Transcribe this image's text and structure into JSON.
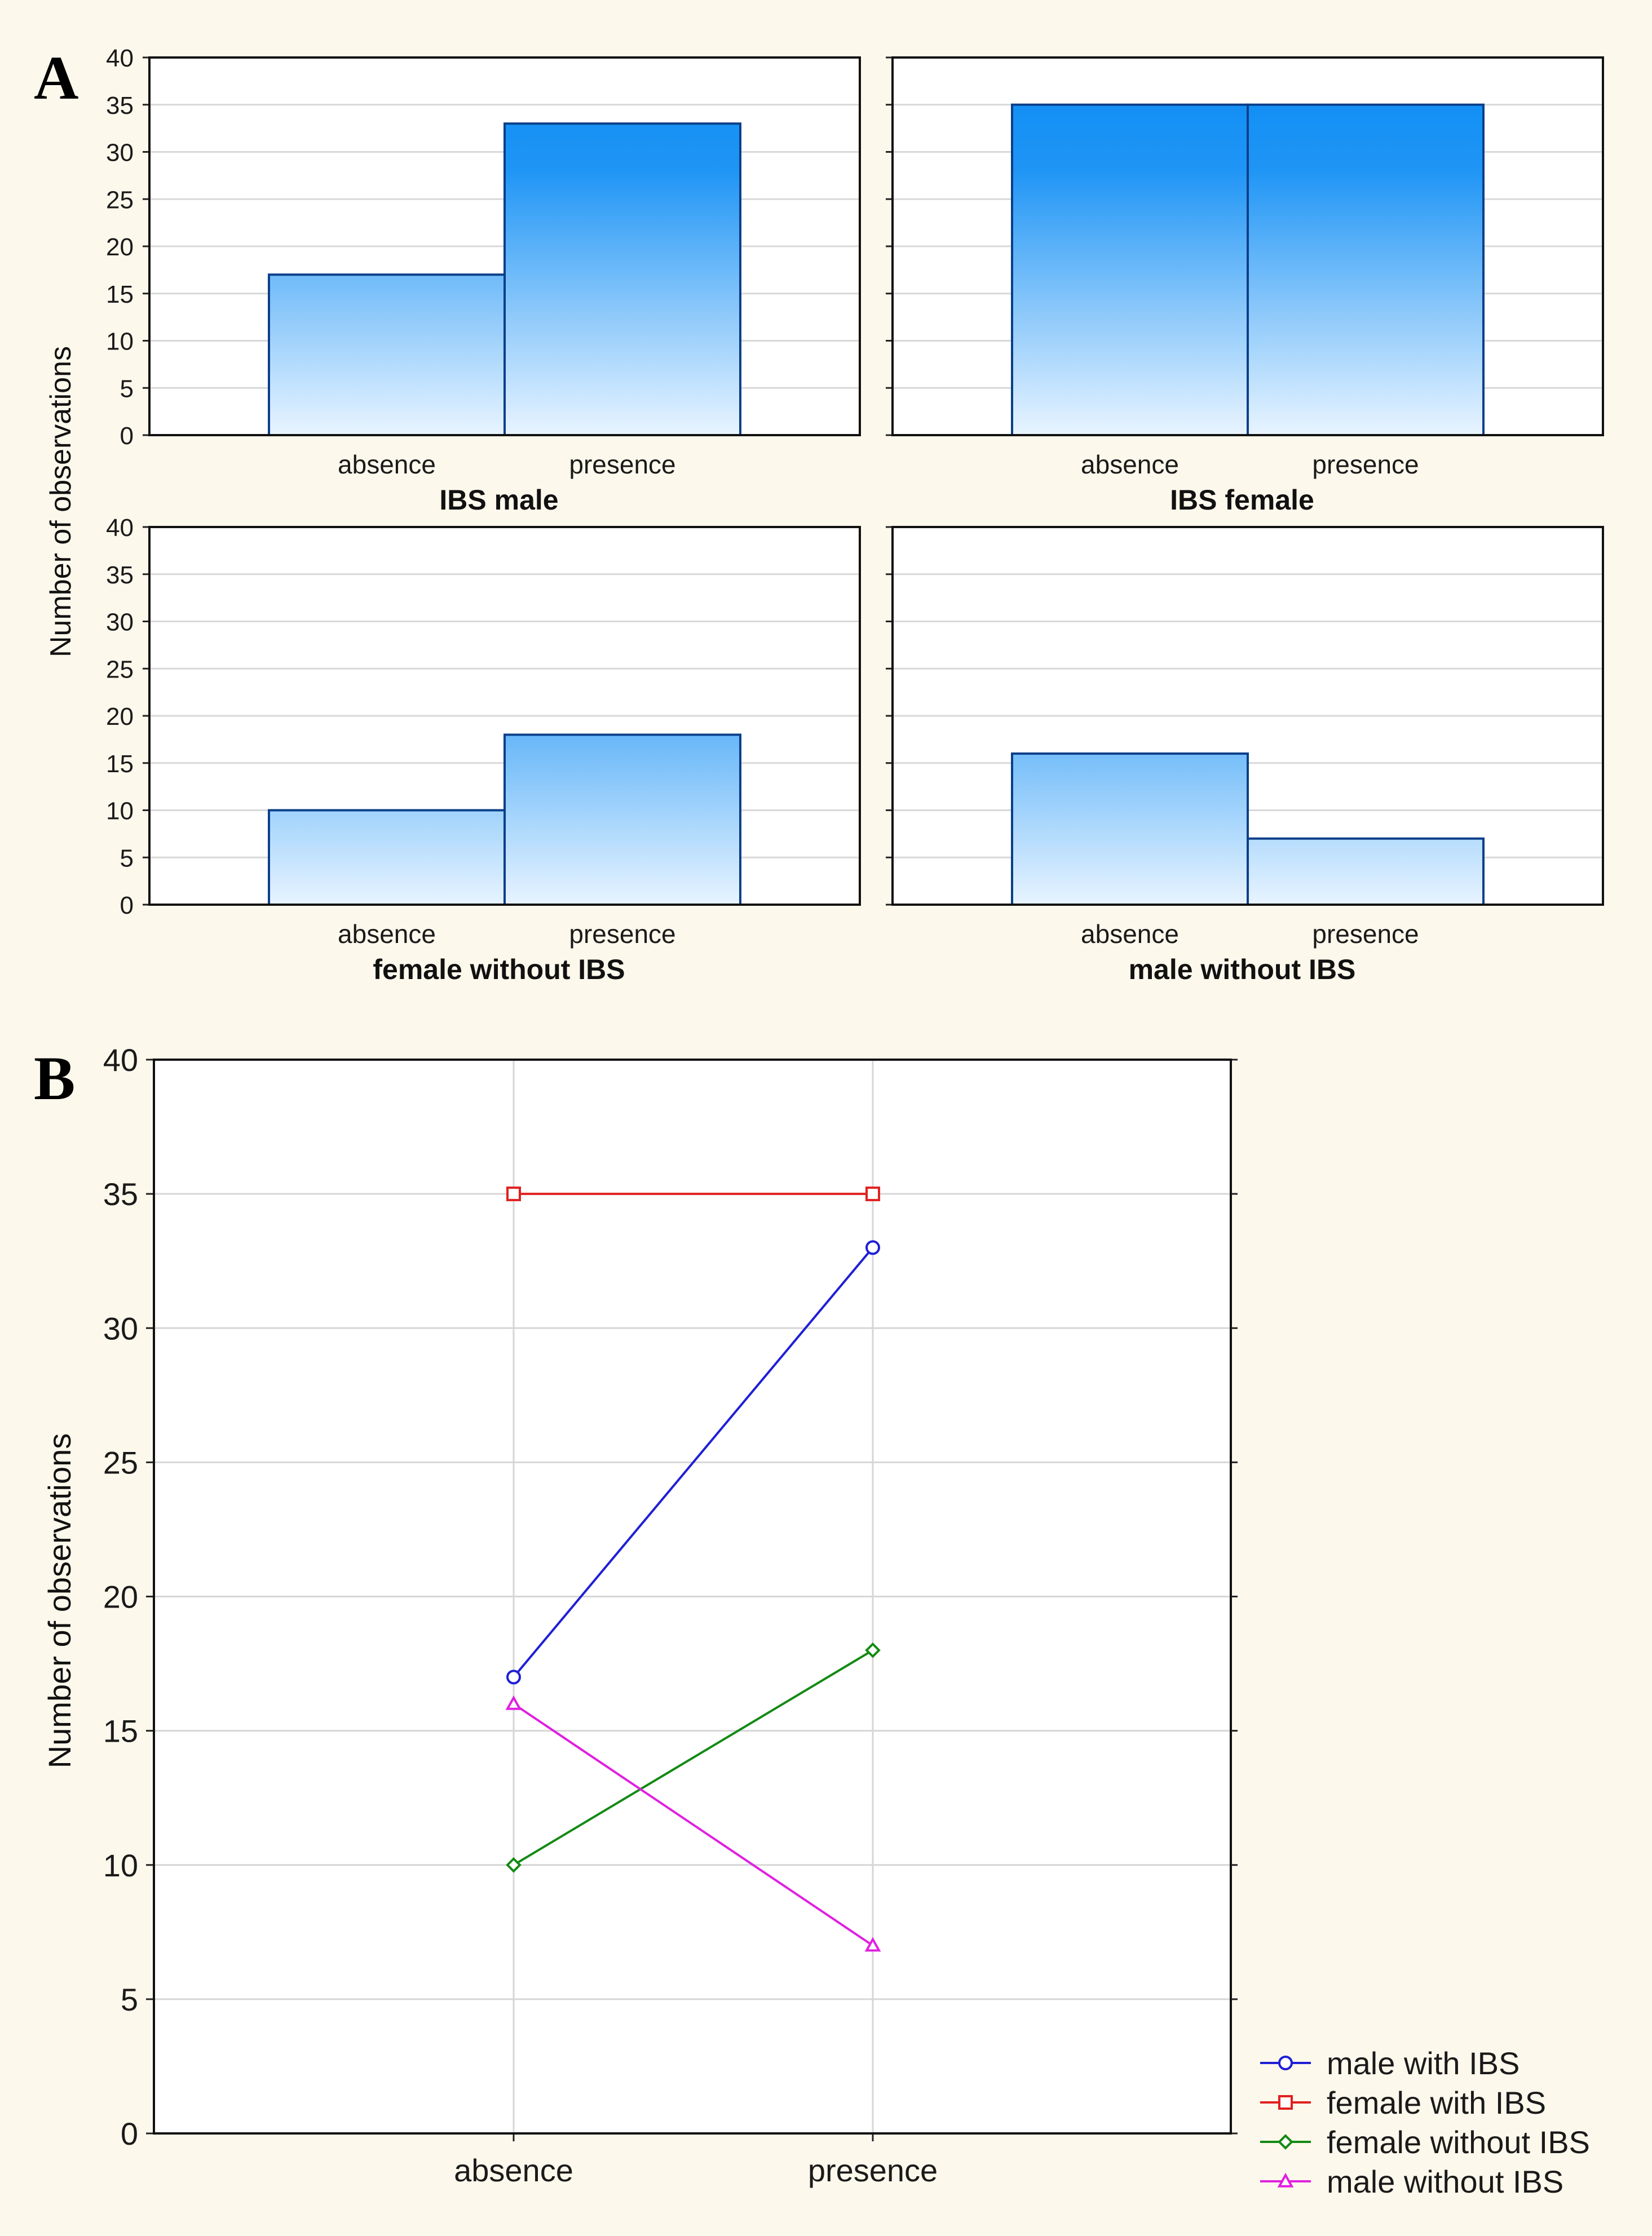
{
  "figure": {
    "panel_a_letter": "A",
    "panel_b_letter": "B",
    "background": "#fdf8ec"
  },
  "chart_data": [
    {
      "type": "bar",
      "panel": "A",
      "title": "IBS male",
      "categories": [
        "absence",
        "presence"
      ],
      "values": [
        17,
        33
      ],
      "ylabel": "Number of observations",
      "ylim": [
        0,
        40
      ],
      "yticks": [
        0,
        5,
        10,
        15,
        20,
        25,
        30,
        35,
        40
      ],
      "grid": true
    },
    {
      "type": "bar",
      "panel": "A",
      "title": "IBS female",
      "categories": [
        "absence",
        "presence"
      ],
      "values": [
        35,
        35
      ],
      "ylabel": "Number of observations",
      "ylim": [
        0,
        40
      ],
      "yticks": [
        0,
        5,
        10,
        15,
        20,
        25,
        30,
        35,
        40
      ],
      "grid": true
    },
    {
      "type": "bar",
      "panel": "A",
      "title": "female without IBS",
      "categories": [
        "absence",
        "presence"
      ],
      "values": [
        10,
        18
      ],
      "ylabel": "Number of observations",
      "ylim": [
        0,
        40
      ],
      "yticks": [
        0,
        5,
        10,
        15,
        20,
        25,
        30,
        35,
        40
      ],
      "grid": true
    },
    {
      "type": "bar",
      "panel": "A",
      "title": "male without IBS",
      "categories": [
        "absence",
        "presence"
      ],
      "values": [
        16,
        7
      ],
      "ylabel": "Number of observations",
      "ylim": [
        0,
        40
      ],
      "yticks": [
        0,
        5,
        10,
        15,
        20,
        25,
        30,
        35,
        40
      ],
      "grid": true
    },
    {
      "type": "line",
      "panel": "B",
      "categories": [
        "absence",
        "presence"
      ],
      "ylabel": "Number of observations",
      "ylim": [
        0,
        40
      ],
      "yticks": [
        0,
        5,
        10,
        15,
        20,
        25,
        30,
        35,
        40
      ],
      "grid": true,
      "legend": "bottom-right",
      "series": [
        {
          "name": "male with IBS",
          "values": [
            17,
            33
          ],
          "color": "#1f1fd6",
          "marker": "circle"
        },
        {
          "name": "female with IBS",
          "values": [
            35,
            35
          ],
          "color": "#e02020",
          "marker": "square"
        },
        {
          "name": "female without IBS",
          "values": [
            10,
            18
          ],
          "color": "#138a13",
          "marker": "diamond"
        },
        {
          "name": "male without IBS",
          "values": [
            16,
            7
          ],
          "color": "#e020e0",
          "marker": "triangle"
        }
      ]
    }
  ]
}
